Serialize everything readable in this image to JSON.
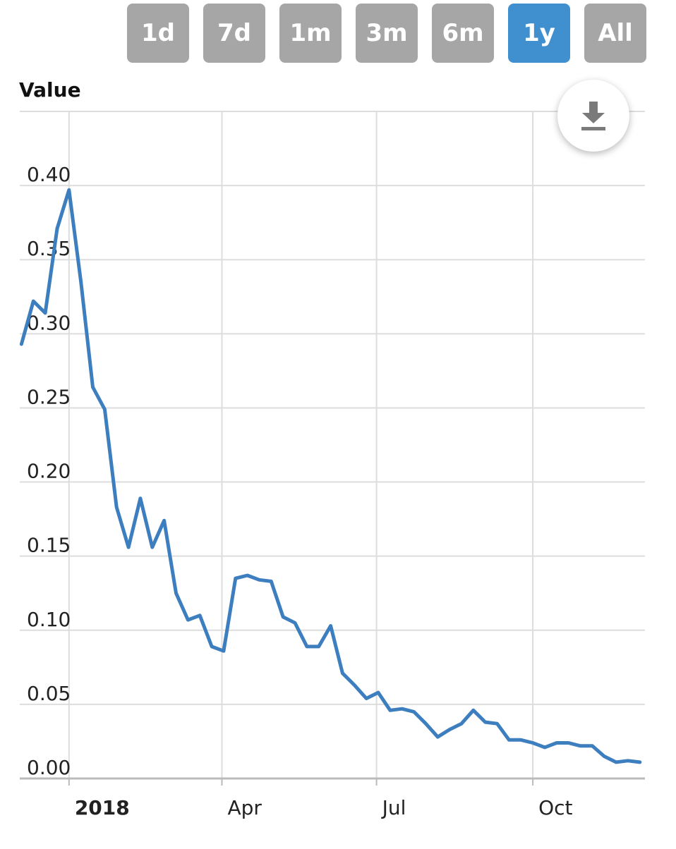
{
  "range_selector": {
    "buttons": [
      {
        "label": "1d",
        "active": false
      },
      {
        "label": "7d",
        "active": false
      },
      {
        "label": "1m",
        "active": false
      },
      {
        "label": "3m",
        "active": false
      },
      {
        "label": "6m",
        "active": false
      },
      {
        "label": "1y",
        "active": true
      },
      {
        "label": "All",
        "active": false
      }
    ],
    "active_color": "#4090d0",
    "inactive_color": "#a6a6a6"
  },
  "download": {
    "icon": "download-icon"
  },
  "chart_data": {
    "type": "line",
    "ylabel": "Value",
    "ylim": [
      0,
      0.45
    ],
    "yticks": [
      "0.00",
      "0.05",
      "0.10",
      "0.15",
      "0.20",
      "0.25",
      "0.30",
      "0.35",
      "0.40"
    ],
    "xlim": [
      "2017-12-03",
      "2018-12-06"
    ],
    "xticks": [
      {
        "date": "2018-01-01",
        "label": "2018",
        "bold": true
      },
      {
        "date": "2018-04-01",
        "label": "Apr",
        "bold": false
      },
      {
        "date": "2018-07-01",
        "label": "Jul",
        "bold": false
      },
      {
        "date": "2018-10-01",
        "label": "Oct",
        "bold": false
      }
    ],
    "grid": true,
    "line_color": "#3d7ebf",
    "series": [
      {
        "x": [
          "2017-12-04",
          "2017-12-11",
          "2017-12-18",
          "2017-12-25",
          "2018-01-01",
          "2018-01-08",
          "2018-01-15",
          "2018-01-22",
          "2018-01-29",
          "2018-02-05",
          "2018-02-12",
          "2018-02-19",
          "2018-02-26",
          "2018-03-05",
          "2018-03-12",
          "2018-03-19",
          "2018-03-26",
          "2018-04-02",
          "2018-04-09",
          "2018-04-16",
          "2018-04-23",
          "2018-04-30",
          "2018-05-07",
          "2018-05-14",
          "2018-05-21",
          "2018-05-28",
          "2018-06-04",
          "2018-06-11",
          "2018-06-18",
          "2018-06-25",
          "2018-07-02",
          "2018-07-09",
          "2018-07-16",
          "2018-07-23",
          "2018-07-30",
          "2018-08-06",
          "2018-08-13",
          "2018-08-20",
          "2018-08-27",
          "2018-09-03",
          "2018-09-10",
          "2018-09-17",
          "2018-09-24",
          "2018-10-01",
          "2018-10-08",
          "2018-10-15",
          "2018-10-22",
          "2018-10-29",
          "2018-11-05",
          "2018-11-12",
          "2018-11-19",
          "2018-11-26",
          "2018-12-03"
        ],
        "values": [
          0.293,
          0.322,
          0.314,
          0.371,
          0.397,
          0.335,
          0.264,
          0.249,
          0.183,
          0.156,
          0.189,
          0.156,
          0.174,
          0.125,
          0.107,
          0.11,
          0.089,
          0.086,
          0.135,
          0.137,
          0.134,
          0.133,
          0.109,
          0.105,
          0.089,
          0.089,
          0.103,
          0.071,
          0.063,
          0.054,
          0.058,
          0.046,
          0.047,
          0.045,
          0.037,
          0.028,
          0.033,
          0.037,
          0.046,
          0.038,
          0.037,
          0.026,
          0.026,
          0.024,
          0.021,
          0.024,
          0.024,
          0.022,
          0.022,
          0.015,
          0.011,
          0.012,
          0.011
        ]
      }
    ]
  }
}
